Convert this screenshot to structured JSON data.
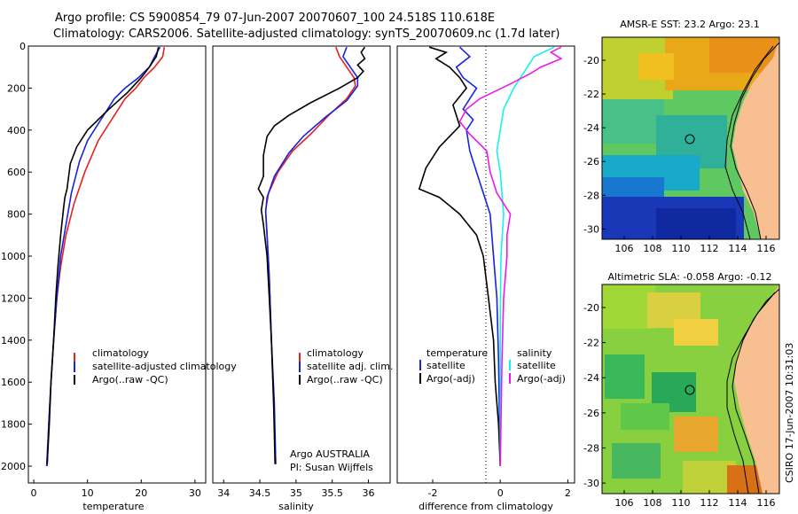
{
  "header": {
    "line1": "Argo profile: CS 5900854_79 07-Jun-2007 20070607_100 24.518S 110.618E",
    "line2": "Climatology: CARS2006. Satellite-adjusted climatology: synTS_20070609.nc (1.7d later)"
  },
  "colors": {
    "red": "#e8201c",
    "blue": "#1424e0",
    "black": "#000000",
    "cyan": "#18f0f0",
    "magenta": "#ee18ee",
    "land": "#f8c090"
  },
  "chart_data": [
    {
      "id": "temperature",
      "type": "line",
      "xlabel": "temperature",
      "ylabel": "",
      "xlim": [
        -1,
        32
      ],
      "ylim": [
        2080,
        0
      ],
      "xticks": [
        "0",
        "10",
        "20",
        "30"
      ],
      "xtickvals": [
        0,
        10,
        20,
        30
      ],
      "yticks": [
        "0",
        "200",
        "400",
        "600",
        "800",
        "1000",
        "1200",
        "1400",
        "1600",
        "1800",
        "2000"
      ],
      "ytickvals": [
        0,
        200,
        400,
        600,
        800,
        1000,
        1200,
        1400,
        1600,
        1800,
        2000
      ],
      "legend": [
        "climatology",
        "satellite-adjusted climatology",
        "Argo(..raw -QC)"
      ],
      "series": [
        {
          "name": "climatology",
          "color": "red",
          "points": [
            [
              24.3,
              5
            ],
            [
              24.0,
              50
            ],
            [
              22.5,
              100
            ],
            [
              20.5,
              150
            ],
            [
              19,
              200
            ],
            [
              17,
              250
            ],
            [
              14.5,
              350
            ],
            [
              12,
              450
            ],
            [
              9.5,
              600
            ],
            [
              7.5,
              750
            ],
            [
              6,
              900
            ],
            [
              5,
              1050
            ],
            [
              4.3,
              1200
            ],
            [
              3.7,
              1400
            ],
            [
              3.2,
              1600
            ],
            [
              2.8,
              1800
            ],
            [
              2.5,
              2000
            ]
          ]
        },
        {
          "name": "satellite",
          "color": "blue",
          "points": [
            [
              23.5,
              5
            ],
            [
              22.5,
              50
            ],
            [
              21.5,
              100
            ],
            [
              19.5,
              150
            ],
            [
              17,
              200
            ],
            [
              15,
              250
            ],
            [
              12.5,
              350
            ],
            [
              10,
              450
            ],
            [
              8.5,
              550
            ],
            [
              7,
              700
            ],
            [
              6,
              850
            ],
            [
              5,
              1000
            ],
            [
              4.3,
              1200
            ],
            [
              3.7,
              1400
            ],
            [
              3.2,
              1600
            ],
            [
              2.8,
              1800
            ],
            [
              2.4,
              2000
            ]
          ]
        },
        {
          "name": "Argo",
          "color": "black",
          "points": [
            [
              23.2,
              5
            ],
            [
              22.8,
              50
            ],
            [
              21.5,
              100
            ],
            [
              20,
              150
            ],
            [
              17.5,
              220
            ],
            [
              14,
              300
            ],
            [
              10,
              400
            ],
            [
              8,
              480
            ],
            [
              6.8,
              560
            ],
            [
              6.2,
              680
            ],
            [
              5.8,
              720
            ],
            [
              5.6,
              760
            ],
            [
              5,
              900
            ],
            [
              4.5,
              1050
            ],
            [
              4.1,
              1200
            ],
            [
              3.7,
              1400
            ],
            [
              3.2,
              1600
            ],
            [
              2.9,
              1800
            ],
            [
              2.5,
              1990
            ]
          ]
        }
      ]
    },
    {
      "id": "salinity",
      "type": "line",
      "xlabel": "salinity",
      "ylabel": "",
      "xlim": [
        33.85,
        36.3
      ],
      "ylim": [
        2080,
        0
      ],
      "xticks": [
        "34",
        "34.5",
        "35",
        "35.5",
        "36"
      ],
      "xtickvals": [
        34,
        34.5,
        35,
        35.5,
        36
      ],
      "legend": [
        "climatology",
        "satellite adj. clim.",
        "Argo(..raw -QC)"
      ],
      "annotation": [
        "Argo AUSTRALIA",
        "PI: Susan Wijffels"
      ],
      "series": [
        {
          "name": "climatology",
          "color": "red",
          "points": [
            [
              35.55,
              5
            ],
            [
              35.6,
              50
            ],
            [
              35.7,
              100
            ],
            [
              35.8,
              150
            ],
            [
              35.82,
              190
            ],
            [
              35.7,
              250
            ],
            [
              35.45,
              330
            ],
            [
              35.2,
              420
            ],
            [
              34.95,
              500
            ],
            [
              34.75,
              600
            ],
            [
              34.62,
              700
            ],
            [
              34.58,
              780
            ],
            [
              34.6,
              900
            ],
            [
              34.63,
              1100
            ],
            [
              34.66,
              1400
            ],
            [
              34.69,
              1700
            ],
            [
              34.72,
              1990
            ]
          ]
        },
        {
          "name": "satellite",
          "color": "blue",
          "points": [
            [
              35.7,
              5
            ],
            [
              35.65,
              50
            ],
            [
              35.75,
              100
            ],
            [
              35.85,
              150
            ],
            [
              35.85,
              190
            ],
            [
              35.7,
              260
            ],
            [
              35.4,
              340
            ],
            [
              35.1,
              430
            ],
            [
              34.9,
              510
            ],
            [
              34.7,
              620
            ],
            [
              34.6,
              720
            ],
            [
              34.58,
              790
            ],
            [
              34.6,
              900
            ],
            [
              34.63,
              1100
            ],
            [
              34.66,
              1400
            ],
            [
              34.7,
              1700
            ],
            [
              34.72,
              1990
            ]
          ]
        },
        {
          "name": "Argo",
          "color": "black",
          "points": [
            [
              35.95,
              5
            ],
            [
              35.9,
              30
            ],
            [
              35.95,
              60
            ],
            [
              35.85,
              90
            ],
            [
              35.93,
              120
            ],
            [
              35.85,
              150
            ],
            [
              35.6,
              200
            ],
            [
              35.2,
              270
            ],
            [
              34.9,
              330
            ],
            [
              34.7,
              380
            ],
            [
              34.6,
              430
            ],
            [
              34.55,
              520
            ],
            [
              34.55,
              620
            ],
            [
              34.48,
              680
            ],
            [
              34.55,
              720
            ],
            [
              34.52,
              780
            ],
            [
              34.55,
              850
            ],
            [
              34.6,
              1000
            ],
            [
              34.63,
              1200
            ],
            [
              34.66,
              1400
            ],
            [
              34.69,
              1700
            ],
            [
              34.71,
              1990
            ]
          ]
        }
      ]
    },
    {
      "id": "difference",
      "type": "line",
      "xlabel": "difference from climatology",
      "ylabel": "",
      "xlim": [
        -3.05,
        2.2
      ],
      "ylim": [
        2080,
        0
      ],
      "xticks": [
        "-2",
        "0",
        "2"
      ],
      "xtickvals": [
        -2,
        0,
        2
      ],
      "legend_groups": [
        {
          "heading": "temperature",
          "items": [
            "satellite",
            "Argo(-adj)"
          ]
        },
        {
          "heading": "salinity",
          "items": [
            "satellite",
            "Argo(-adj)"
          ]
        }
      ],
      "series": [
        {
          "name": "temperature satellite",
          "color": "blue",
          "points": [
            [
              -1.2,
              5
            ],
            [
              -0.9,
              50
            ],
            [
              -1.3,
              100
            ],
            [
              -1.1,
              150
            ],
            [
              -0.7,
              200
            ],
            [
              -1.1,
              300
            ],
            [
              -0.8,
              350
            ],
            [
              -1.0,
              400
            ],
            [
              -0.9,
              500
            ],
            [
              -0.7,
              600
            ],
            [
              -0.5,
              700
            ],
            [
              -0.3,
              800
            ],
            [
              -0.2,
              1000
            ],
            [
              -0.1,
              1200
            ],
            [
              -0.05,
              1500
            ],
            [
              -0.02,
              1800
            ],
            [
              0,
              2000
            ]
          ]
        },
        {
          "name": "temperature Argo",
          "color": "black",
          "points": [
            [
              -2.1,
              5
            ],
            [
              -1.6,
              30
            ],
            [
              -1.9,
              60
            ],
            [
              -1.5,
              100
            ],
            [
              -1.2,
              150
            ],
            [
              -1.0,
              200
            ],
            [
              -1.4,
              280
            ],
            [
              -1.2,
              380
            ],
            [
              -1.8,
              480
            ],
            [
              -2.2,
              580
            ],
            [
              -2.4,
              680
            ],
            [
              -1.8,
              720
            ],
            [
              -1.2,
              800
            ],
            [
              -0.7,
              900
            ],
            [
              -0.5,
              1000
            ],
            [
              -0.35,
              1200
            ],
            [
              -0.2,
              1400
            ],
            [
              -0.15,
              1600
            ],
            [
              -0.05,
              1800
            ],
            [
              0,
              2000
            ]
          ]
        },
        {
          "name": "salinity satellite",
          "color": "cyan",
          "points": [
            [
              1.6,
              5
            ],
            [
              1.0,
              50
            ],
            [
              0.8,
              100
            ],
            [
              0.4,
              200
            ],
            [
              0.1,
              300
            ],
            [
              0,
              400
            ],
            [
              -0.1,
              500
            ],
            [
              0.0,
              600
            ],
            [
              0.05,
              700
            ],
            [
              0.1,
              800
            ],
            [
              0.02,
              1000
            ],
            [
              0,
              1300
            ],
            [
              0,
              1600
            ],
            [
              0,
              1800
            ],
            [
              0,
              2000
            ]
          ]
        },
        {
          "name": "salinity Argo",
          "color": "magenta",
          "points": [
            [
              1.8,
              5
            ],
            [
              1.5,
              30
            ],
            [
              1.8,
              60
            ],
            [
              1.2,
              100
            ],
            [
              0.9,
              130
            ],
            [
              0.3,
              180
            ],
            [
              -0.6,
              250
            ],
            [
              -1.0,
              300
            ],
            [
              -1.2,
              360
            ],
            [
              -0.9,
              420
            ],
            [
              -0.4,
              500
            ],
            [
              -0.3,
              600
            ],
            [
              -0.1,
              700
            ],
            [
              0.3,
              800
            ],
            [
              0.2,
              900
            ],
            [
              0.2,
              1000
            ],
            [
              0.1,
              1200
            ],
            [
              0.05,
              1500
            ],
            [
              0.02,
              1800
            ],
            [
              0,
              2000
            ]
          ]
        }
      ]
    }
  ],
  "maps": [
    {
      "id": "sst",
      "title": "AMSR-E SST: 23.2 Argo: 23.1",
      "xticks": [
        "106",
        "108",
        "110",
        "112",
        "114",
        "116"
      ],
      "yticks": [
        "-20",
        "-22",
        "-24",
        "-26",
        "-28",
        "-30"
      ]
    },
    {
      "id": "sla",
      "title": "Altimetric SLA: -0.058 Argo: -0.12",
      "xticks": [
        "106",
        "108",
        "110",
        "112",
        "114",
        "116"
      ],
      "yticks": [
        "-20",
        "-22",
        "-24",
        "-26",
        "-28",
        "-30"
      ]
    }
  ],
  "footer": {
    "credit": "CSIRO 17-Jun-2007 10:31:03"
  }
}
